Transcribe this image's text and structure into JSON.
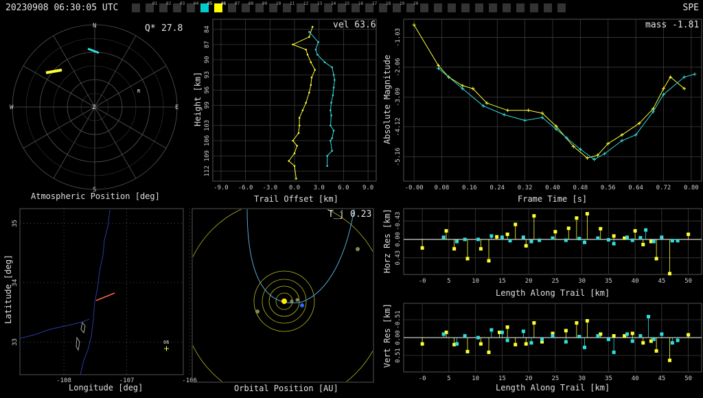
{
  "header": {
    "timestamp": "20230908 06:30:05 UTC",
    "station": "SPE",
    "camera_ticks": [
      "01",
      "02",
      "03",
      "04",
      "05",
      "06",
      "07",
      "08",
      "09",
      "10",
      "11",
      "12",
      "13",
      "14",
      "15",
      "16",
      "17",
      "18",
      "19",
      "20"
    ],
    "active_ticks": {
      "05": "#00cccc",
      "06": "#ffff00"
    }
  },
  "colors": {
    "yellow": "#ffff33",
    "cyan": "#33dddd",
    "grid": "#4a4a4a",
    "background": "#000000"
  },
  "atmospheric": {
    "title": "Atmospheric Position [deg]",
    "q_label": "Q*",
    "q_value": "27.8",
    "compass": {
      "n": "N",
      "s": "S",
      "e": "E",
      "w": "W",
      "z": "Z",
      "r": "R"
    }
  },
  "lonlat": {
    "xlabel": "Longitude [deg]",
    "ylabel": "Latitude [deg]",
    "xticks": [
      "-108",
      "-107",
      "-106"
    ],
    "yticks": [
      "33",
      "34",
      "35"
    ],
    "marker_label": "06"
  },
  "orbit": {
    "title": "Orbital Position [AU]",
    "tj_label": "T_j",
    "tj_value": "0.23"
  },
  "chart_data": [
    {
      "type": "scatter",
      "name": "trail",
      "xlabel": "Trail Offset [km]",
      "ylabel": "Height [km]",
      "annotation": "vel 63.6",
      "xticks": [
        "-9.0",
        "-6.0",
        "-3.0",
        "0.0",
        "3.0",
        "6.0",
        "9.0"
      ],
      "yticks": [
        "84",
        "87",
        "90",
        "93",
        "96",
        "99",
        "103",
        "106",
        "109",
        "112"
      ],
      "xlim": [
        -10,
        10
      ],
      "ylim": [
        82,
        114
      ],
      "series": [
        {
          "color": "yellow",
          "points": [
            [
              0.2,
              113.5
            ],
            [
              0.0,
              111
            ],
            [
              -0.7,
              110
            ],
            [
              0.0,
              108.5
            ],
            [
              0.3,
              107
            ],
            [
              -0.2,
              106
            ],
            [
              0.5,
              104.5
            ],
            [
              0.6,
              103
            ],
            [
              0.6,
              101.5
            ],
            [
              1.0,
              100
            ],
            [
              1.4,
              98.5
            ],
            [
              1.8,
              96.5
            ],
            [
              2.0,
              95
            ],
            [
              2.1,
              93.5
            ],
            [
              2.5,
              92
            ],
            [
              2.0,
              90.5
            ],
            [
              1.6,
              89
            ],
            [
              1.4,
              88
            ],
            [
              -0.2,
              87
            ],
            [
              1.8,
              85.5
            ],
            [
              2.2,
              83.5
            ]
          ]
        },
        {
          "color": "cyan",
          "points": [
            [
              4.0,
              111
            ],
            [
              4.0,
              109
            ],
            [
              4.6,
              108
            ],
            [
              4.4,
              106
            ],
            [
              4.6,
              105.5
            ],
            [
              4.8,
              104
            ],
            [
              4.4,
              103
            ],
            [
              4.5,
              101
            ],
            [
              4.4,
              100
            ],
            [
              4.5,
              98.5
            ],
            [
              4.7,
              97
            ],
            [
              4.8,
              95.5
            ],
            [
              4.9,
              94
            ],
            [
              4.8,
              93
            ],
            [
              4.6,
              91.5
            ],
            [
              3.7,
              90.5
            ],
            [
              2.8,
              89
            ],
            [
              2.6,
              88
            ],
            [
              2.9,
              86.5
            ],
            [
              1.8,
              84.5
            ]
          ]
        }
      ]
    },
    {
      "type": "line",
      "name": "lightcurve",
      "xlabel": "Frame Time [s]",
      "ylabel": "Absolute Magnitude",
      "annotation": "mass -1.81",
      "xticks": [
        "-0.00",
        "0.08",
        "0.16",
        "0.24",
        "0.32",
        "0.40",
        "0.48",
        "0.56",
        "0.64",
        "0.72",
        "0.80"
      ],
      "yticks": [
        "-5.16",
        "-4.12",
        "-3.09",
        "-2.06",
        "-1.03"
      ],
      "xlim": [
        -0.03,
        0.83
      ],
      "ylim": [
        -0.4,
        -6.0
      ],
      "series": [
        {
          "color": "yellow",
          "points": [
            [
              -0.0,
              -0.6
            ],
            [
              0.07,
              -2.0
            ],
            [
              0.1,
              -2.4
            ],
            [
              0.14,
              -2.7
            ],
            [
              0.17,
              -2.8
            ],
            [
              0.21,
              -3.3
            ],
            [
              0.27,
              -3.55
            ],
            [
              0.33,
              -3.55
            ],
            [
              0.37,
              -3.65
            ],
            [
              0.41,
              -4.1
            ],
            [
              0.46,
              -4.8
            ],
            [
              0.5,
              -5.2
            ],
            [
              0.53,
              -5.1
            ],
            [
              0.56,
              -4.7
            ],
            [
              0.6,
              -4.4
            ],
            [
              0.65,
              -4.0
            ],
            [
              0.69,
              -3.5
            ],
            [
              0.72,
              -2.8
            ],
            [
              0.74,
              -2.4
            ],
            [
              0.78,
              -2.8
            ]
          ]
        },
        {
          "color": "cyan",
          "points": [
            [
              0.07,
              -2.1
            ],
            [
              0.14,
              -2.8
            ],
            [
              0.2,
              -3.4
            ],
            [
              0.26,
              -3.7
            ],
            [
              0.32,
              -3.9
            ],
            [
              0.37,
              -3.8
            ],
            [
              0.41,
              -4.2
            ],
            [
              0.44,
              -4.5
            ],
            [
              0.48,
              -4.9
            ],
            [
              0.52,
              -5.25
            ],
            [
              0.55,
              -5.05
            ],
            [
              0.6,
              -4.6
            ],
            [
              0.64,
              -4.4
            ],
            [
              0.69,
              -3.6
            ],
            [
              0.72,
              -3.0
            ],
            [
              0.78,
              -2.4
            ],
            [
              0.81,
              -2.3
            ]
          ]
        }
      ]
    },
    {
      "type": "scatter",
      "name": "horz_res",
      "xlabel": "Length Along Trail [km]",
      "ylabel": "Horz Res [km]",
      "xticks": [
        "-0",
        "5",
        "10",
        "15",
        "20",
        "25",
        "30",
        "35",
        "40",
        "45",
        "50"
      ],
      "yticks": [
        "0.43",
        "0.00",
        "-0.43"
      ],
      "xlim": [
        -3.5,
        52.5
      ],
      "ylim": [
        -0.72,
        0.82
      ],
      "series": [
        {
          "color": "yellow",
          "points": [
            [
              0,
              0.2
            ],
            [
              4.5,
              -0.2
            ],
            [
              6,
              0.22
            ],
            [
              8.5,
              0.45
            ],
            [
              11,
              0.22
            ],
            [
              12.5,
              0.5
            ],
            [
              14,
              -0.06
            ],
            [
              16,
              -0.12
            ],
            [
              17.5,
              -0.35
            ],
            [
              19.5,
              0.15
            ],
            [
              21,
              -0.55
            ],
            [
              25,
              -0.18
            ],
            [
              27.5,
              -0.26
            ],
            [
              29,
              -0.5
            ],
            [
              31,
              -0.6
            ],
            [
              33.5,
              -0.25
            ],
            [
              36,
              -0.08
            ],
            [
              38,
              -0.03
            ],
            [
              40,
              -0.2
            ],
            [
              41.5,
              0.12
            ],
            [
              43,
              0.05
            ],
            [
              44,
              0.45
            ],
            [
              46.5,
              0.8
            ],
            [
              50,
              -0.12
            ]
          ]
        },
        {
          "color": "cyan",
          "points": [
            [
              4,
              -0.05
            ],
            [
              6.5,
              0.05
            ],
            [
              8,
              0.0
            ],
            [
              10.5,
              0.0
            ],
            [
              13,
              -0.08
            ],
            [
              15,
              -0.05
            ],
            [
              16.5,
              0.03
            ],
            [
              19,
              -0.05
            ],
            [
              20.5,
              0.05
            ],
            [
              22,
              0.02
            ],
            [
              24.5,
              -0.03
            ],
            [
              27,
              0.02
            ],
            [
              29.5,
              -0.02
            ],
            [
              30.5,
              0.07
            ],
            [
              33,
              -0.03
            ],
            [
              35,
              0.01
            ],
            [
              36,
              0.1
            ],
            [
              38.5,
              -0.05
            ],
            [
              39.5,
              0.02
            ],
            [
              41,
              -0.04
            ],
            [
              42,
              -0.22
            ],
            [
              43.5,
              0.05
            ],
            [
              45,
              -0.05
            ],
            [
              47,
              0.03
            ],
            [
              48,
              0.03
            ]
          ]
        }
      ]
    },
    {
      "type": "scatter",
      "name": "vert_res",
      "xlabel": "Length Along Trail [km]",
      "ylabel": "Vert Res [km]",
      "xticks": [
        "-0",
        "5",
        "10",
        "15",
        "20",
        "25",
        "30",
        "35",
        "40",
        "45",
        "50"
      ],
      "yticks": [
        "0.51",
        "0.00",
        "-0.51"
      ],
      "xlim": [
        -3.5,
        52.5
      ],
      "ylim": [
        -0.98,
        0.98
      ],
      "series": [
        {
          "color": "yellow",
          "points": [
            [
              0,
              0.18
            ],
            [
              4.5,
              -0.15
            ],
            [
              6,
              0.2
            ],
            [
              8.5,
              0.4
            ],
            [
              11,
              0.18
            ],
            [
              12.5,
              0.42
            ],
            [
              14.5,
              -0.15
            ],
            [
              16,
              -0.3
            ],
            [
              17.5,
              0.2
            ],
            [
              19.5,
              0.18
            ],
            [
              21,
              -0.42
            ],
            [
              22.5,
              0.12
            ],
            [
              24.5,
              -0.12
            ],
            [
              27,
              -0.2
            ],
            [
              29,
              -0.42
            ],
            [
              31,
              -0.48
            ],
            [
              33.5,
              -0.1
            ],
            [
              36,
              -0.05
            ],
            [
              38,
              -0.05
            ],
            [
              39.5,
              -0.12
            ],
            [
              41.5,
              0.15
            ],
            [
              43,
              0.1
            ],
            [
              44,
              0.38
            ],
            [
              46.5,
              0.65
            ],
            [
              50,
              -0.08
            ]
          ]
        },
        {
          "color": "cyan",
          "points": [
            [
              4,
              -0.1
            ],
            [
              6.5,
              0.18
            ],
            [
              8,
              -0.05
            ],
            [
              10.5,
              0.0
            ],
            [
              13,
              -0.22
            ],
            [
              15,
              -0.15
            ],
            [
              16,
              0.08
            ],
            [
              19,
              -0.18
            ],
            [
              20.5,
              0.15
            ],
            [
              22.5,
              0.05
            ],
            [
              24.5,
              -0.05
            ],
            [
              27,
              0.12
            ],
            [
              29.5,
              -0.03
            ],
            [
              30.5,
              0.28
            ],
            [
              33,
              -0.05
            ],
            [
              35,
              0.05
            ],
            [
              36,
              0.42
            ],
            [
              38.5,
              -0.1
            ],
            [
              39.5,
              0.1
            ],
            [
              41,
              -0.05
            ],
            [
              42.5,
              -0.6
            ],
            [
              43.5,
              0.05
            ],
            [
              45,
              -0.1
            ],
            [
              47,
              0.15
            ],
            [
              48,
              0.08
            ]
          ]
        }
      ]
    }
  ]
}
